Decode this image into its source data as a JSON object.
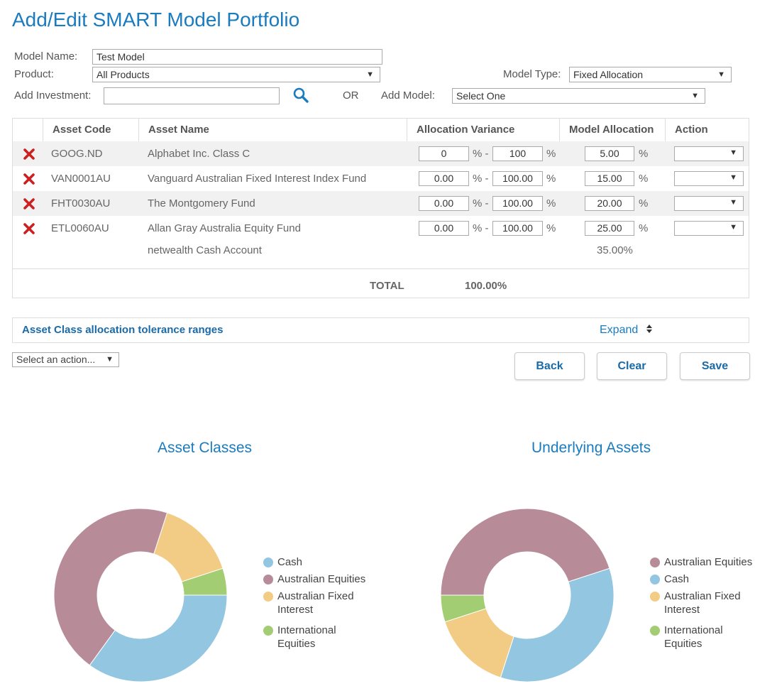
{
  "page_title": "Add/Edit SMART Model Portfolio",
  "form": {
    "model_name_label": "Model Name:",
    "model_name_value": "Test Model",
    "product_label": "Product:",
    "product_value": "All Products",
    "model_type_label": "Model Type:",
    "model_type_value": "Fixed Allocation",
    "add_investment_label": "Add Investment:",
    "add_investment_value": "",
    "or_label": "OR",
    "add_model_label": "Add Model:",
    "add_model_value": "Select One"
  },
  "table": {
    "headers": [
      "Asset Code",
      "Asset Name",
      "Allocation Variance",
      "Model Allocation",
      "Action"
    ],
    "rows": [
      {
        "code": "GOOG.ND",
        "name": "Alphabet Inc. Class C",
        "var_min": "0",
        "var_max": "100",
        "alloc": "5.00"
      },
      {
        "code": "VAN0001AU",
        "name": "Vanguard Australian Fixed Interest Index Fund",
        "var_min": "0.00",
        "var_max": "100.00",
        "alloc": "15.00"
      },
      {
        "code": "FHT0030AU",
        "name": "The Montgomery Fund",
        "var_min": "0.00",
        "var_max": "100.00",
        "alloc": "20.00"
      },
      {
        "code": "ETL0060AU",
        "name": "Allan Gray Australia Equity Fund",
        "var_min": "0.00",
        "var_max": "100.00",
        "alloc": "25.00"
      }
    ],
    "cash_row": {
      "name": "netwealth Cash Account",
      "alloc": "35.00%"
    },
    "pct_sign": "%",
    "range_sep": "% -",
    "total_label": "TOTAL",
    "total_value": "100.00%"
  },
  "tolerance": {
    "title": "Asset Class allocation tolerance ranges",
    "expand_label": "Expand"
  },
  "action_select": "Select an action...",
  "buttons": {
    "back": "Back",
    "clear": "Clear",
    "save": "Save"
  },
  "colors": {
    "cash": "#93c6e1",
    "australian_equities": "#b78c98",
    "australian_fixed_interest": "#f2cb85",
    "international_equities": "#a3cd73"
  },
  "chart_data": [
    {
      "type": "pie",
      "title": "Asset Classes",
      "categories": [
        "Cash",
        "Australian Equities",
        "Australian Fixed Interest",
        "International Equities"
      ],
      "values": [
        35,
        45,
        15,
        5
      ],
      "legend": "right"
    },
    {
      "type": "pie",
      "title": "Underlying Assets",
      "categories": [
        "Australian Equities",
        "Cash",
        "Australian Fixed Interest",
        "International Equities"
      ],
      "values": [
        45,
        35,
        15,
        5
      ],
      "legend": "right"
    }
  ]
}
